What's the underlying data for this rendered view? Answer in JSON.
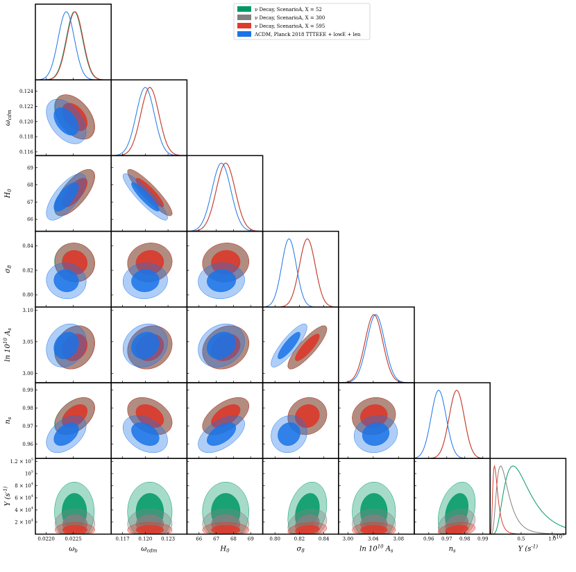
{
  "chart_data": {
    "type": "corner",
    "params": [
      {
        "id": "omega_b",
        "label": "ω_b",
        "range": [
          0.0218,
          0.0232
        ],
        "ticks": [
          {
            "v": 0.022,
            "t": "0.0220"
          },
          {
            "v": 0.0225,
            "t": "0.0225"
          }
        ]
      },
      {
        "id": "omega_cdm",
        "label": "ω_cdm",
        "range": [
          0.1155,
          0.1255
        ],
        "ticks": [
          {
            "v": 0.117,
            "t": "0.117"
          },
          {
            "v": 0.12,
            "t": "0.120"
          },
          {
            "v": 0.123,
            "t": "0.123"
          }
        ]
      },
      {
        "id": "H0",
        "label": "H_0",
        "range": [
          65.3,
          69.7
        ],
        "ticks": [
          {
            "v": 66,
            "t": "66"
          },
          {
            "v": 67,
            "t": "67"
          },
          {
            "v": 68,
            "t": "68"
          },
          {
            "v": 69,
            "t": "69"
          }
        ]
      },
      {
        "id": "sigma8",
        "label": "σ_8",
        "range": [
          0.79,
          0.852
        ],
        "ticks": [
          {
            "v": 0.8,
            "t": "0.80"
          },
          {
            "v": 0.82,
            "t": "0.82"
          },
          {
            "v": 0.84,
            "t": "0.84"
          }
        ]
      },
      {
        "id": "ln10As",
        "label": "ln 10^10 A_s",
        "range": [
          2.985,
          3.105
        ],
        "ticks": [
          {
            "v": 3.0,
            "t": "3.00"
          },
          {
            "v": 3.04,
            "t": "3.04"
          },
          {
            "v": 3.08,
            "t": "3.08"
          }
        ]
      },
      {
        "id": "ns",
        "label": "n_s",
        "range": [
          0.952,
          0.994
        ],
        "ticks": [
          {
            "v": 0.96,
            "t": "0.96"
          },
          {
            "v": 0.97,
            "t": "0.97"
          },
          {
            "v": 0.98,
            "t": "0.98"
          },
          {
            "v": 0.99,
            "t": "0.99"
          }
        ]
      },
      {
        "id": "Y",
        "label": "Y (s^-1)",
        "range": [
          0.0,
          1.22
        ],
        "ticks": [
          {
            "v": 0.5,
            "t": "0.5"
          },
          {
            "v": 1.0,
            "t": "1.0"
          }
        ]
      }
    ],
    "y_tick_overrides": {
      "omega_cdm": [
        {
          "v": 0.116,
          "t": "0.116"
        },
        {
          "v": 0.118,
          "t": "0.118"
        },
        {
          "v": 0.12,
          "t": "0.120"
        },
        {
          "v": 0.122,
          "t": "0.122"
        },
        {
          "v": 0.124,
          "t": "0.124"
        }
      ],
      "H0": [
        {
          "v": 66,
          "t": "66"
        },
        {
          "v": 67,
          "t": "67"
        },
        {
          "v": 68,
          "t": "68"
        },
        {
          "v": 69,
          "t": "69"
        }
      ],
      "sigma8": [
        {
          "v": 0.8,
          "t": "0.80"
        },
        {
          "v": 0.82,
          "t": "0.82"
        },
        {
          "v": 0.84,
          "t": "0.84"
        }
      ],
      "ln10As": [
        {
          "v": 3.0,
          "t": "3.00"
        },
        {
          "v": 3.05,
          "t": "3.05"
        },
        {
          "v": 3.1,
          "t": "3.10"
        }
      ],
      "ns": [
        {
          "v": 0.96,
          "t": "0.96"
        },
        {
          "v": 0.97,
          "t": "0.97"
        },
        {
          "v": 0.98,
          "t": "0.98"
        },
        {
          "v": 0.99,
          "t": "0.99"
        }
      ],
      "Y": [
        {
          "v": 0.2,
          "t": "2 × 10^4"
        },
        {
          "v": 0.4,
          "t": "4 × 10^4"
        },
        {
          "v": 0.6,
          "t": "6 × 10^4"
        },
        {
          "v": 0.8,
          "t": "8 × 10^4"
        },
        {
          "v": 1.0,
          "t": "10^5"
        },
        {
          "v": 1.2,
          "t": "1.2 × 10^5"
        }
      ]
    },
    "y_axis_Y_range": [
      0.0,
      1.25
    ],
    "x_axis_multiplier": "×10^5",
    "series": [
      {
        "name": "ν Decay, ScenarioA, X = 52",
        "color": "#009966",
        "mean": {
          "omega_b": 0.02252,
          "omega_cdm": 0.1206,
          "H0": 67.55,
          "sigma8": 0.8265,
          "ln10As": 3.041,
          "ns": 0.9755,
          "Y": 0.37
        },
        "sd": {
          "omega_b": 0.00015,
          "omega_cdm": 0.0012,
          "H0": 0.55,
          "sigma8": 0.0065,
          "ln10As": 0.014,
          "ns": 0.0042,
          "Y": 0.2
        }
      },
      {
        "name": "ν Decay, ScenarioA, X = 300",
        "color": "#808080",
        "mean": {
          "omega_b": 0.02253,
          "omega_cdm": 0.1206,
          "H0": 67.55,
          "sigma8": 0.8265,
          "ln10As": 3.041,
          "ns": 0.9755,
          "Y": 0.17
        },
        "sd": {
          "omega_b": 0.00015,
          "omega_cdm": 0.0012,
          "H0": 0.55,
          "sigma8": 0.0065,
          "ln10As": 0.014,
          "ns": 0.0042,
          "Y": 0.1
        }
      },
      {
        "name": "ν Decay, ScenarioA, X = 595",
        "color": "#e03a2c",
        "mean": {
          "omega_b": 0.02253,
          "omega_cdm": 0.1206,
          "H0": 67.55,
          "sigma8": 0.8265,
          "ln10As": 3.041,
          "ns": 0.9755,
          "Y": 0.07
        },
        "sd": {
          "omega_b": 0.00015,
          "omega_cdm": 0.0012,
          "H0": 0.55,
          "sigma8": 0.0065,
          "ln10As": 0.014,
          "ns": 0.0042,
          "Y": 0.05
        }
      },
      {
        "name": "ΛCDM, Planck 2018 TTTEEE + lowE + len",
        "color": "#1a73e8",
        "mean": {
          "omega_b": 0.02237,
          "omega_cdm": 0.12,
          "H0": 67.3,
          "sigma8": 0.8115,
          "ln10As": 3.044,
          "ns": 0.9655,
          "Y": null
        },
        "sd": {
          "omega_b": 0.00015,
          "omega_cdm": 0.0012,
          "H0": 0.55,
          "sigma8": 0.006,
          "ln10As": 0.014,
          "ns": 0.0042,
          "Y": null
        }
      }
    ],
    "correlations": {
      "omega_b|omega_cdm": -0.45,
      "omega_b|H0": 0.7,
      "omega_b|sigma8": -0.05,
      "omega_b|ln10As": 0.2,
      "omega_b|ns": 0.45,
      "omega_b|Y": 0.0,
      "omega_cdm|H0": -0.9,
      "omega_cdm|sigma8": 0.05,
      "omega_cdm|ln10As": 0.15,
      "omega_cdm|ns": -0.35,
      "omega_cdm|Y": 0.0,
      "H0|sigma8": 0.05,
      "H0|ln10As": 0.2,
      "H0|ns": 0.55,
      "H0|Y": 0.0,
      "sigma8|ln10As": 0.85,
      "sigma8|ns": 0.1,
      "sigma8|Y": 0.25,
      "ln10As|ns": 0.1,
      "ln10As|Y": 0.0,
      "ns|Y": 0.3
    },
    "legend": {
      "placement": "top-center"
    },
    "contour_levels": [
      "68%",
      "95%"
    ]
  }
}
